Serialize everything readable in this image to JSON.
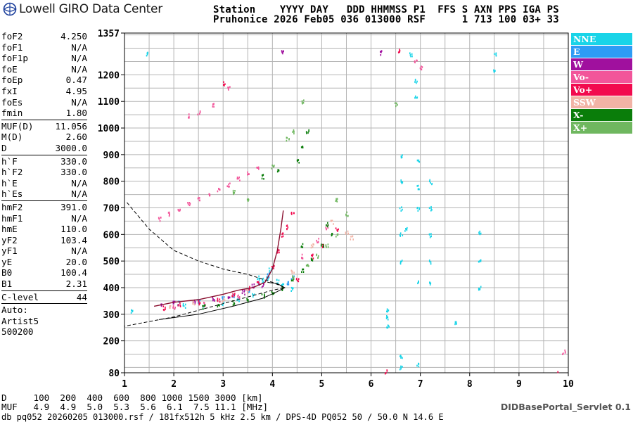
{
  "logo_text": "Lowell GIRO Data Center",
  "header": {
    "line1": "Station    YYYY DAY   DDD HHMMSS P1  FFS S AXN PPS IGA PS",
    "line2": "Pruhonice 2026 Feb05 036 013000 RSF      1 713 100 03+ 33"
  },
  "params": {
    "group1": [
      {
        "label": "foF2",
        "value": "4.250"
      },
      {
        "label": "foF1",
        "value": "N/A"
      },
      {
        "label": "foF1p",
        "value": "N/A"
      },
      {
        "label": "foE",
        "value": "N/A"
      },
      {
        "label": "foEp",
        "value": "0.47"
      },
      {
        "label": "fxI",
        "value": "4.95"
      },
      {
        "label": "foEs",
        "value": "N/A"
      },
      {
        "label": "fmin",
        "value": "1.80"
      }
    ],
    "group2": [
      {
        "label": "MUF(D)",
        "value": "11.056"
      },
      {
        "label": "M(D)",
        "value": "2.60"
      },
      {
        "label": "D",
        "value": "3000.0"
      }
    ],
    "group3": [
      {
        "label": "h`F",
        "value": "330.0"
      },
      {
        "label": "h`F2",
        "value": "330.0"
      },
      {
        "label": "h`E",
        "value": "N/A"
      },
      {
        "label": "h`Es",
        "value": "N/A"
      }
    ],
    "group4": [
      {
        "label": "hmF2",
        "value": "391.0"
      },
      {
        "label": "hmF1",
        "value": "N/A"
      },
      {
        "label": "hmE",
        "value": "110.0"
      },
      {
        "label": "yF2",
        "value": "103.4"
      },
      {
        "label": "yF1",
        "value": "N/A"
      },
      {
        "label": "yE",
        "value": "20.0"
      },
      {
        "label": "B0",
        "value": "100.4"
      },
      {
        "label": "B1",
        "value": "2.31"
      }
    ],
    "group5": [
      {
        "label": "C-level",
        "value": "44"
      }
    ],
    "auto_lines": [
      "Auto:",
      "Artist5",
      "500200"
    ]
  },
  "legend": [
    {
      "label": "NNE",
      "color": "#19d4e8"
    },
    {
      "label": "E",
      "color": "#2e9cf5"
    },
    {
      "label": "W",
      "color": "#a0109e"
    },
    {
      "label": "Vo-",
      "color": "#f2559a"
    },
    {
      "label": "Vo+",
      "color": "#f20a4e"
    },
    {
      "label": "SSW",
      "color": "#f2b3a6"
    },
    {
      "label": "X-",
      "color": "#0a7d0a"
    },
    {
      "label": "X+",
      "color": "#6fb75f"
    }
  ],
  "footer": {
    "d_line": "D     100  200  400  600  800 1000 1500 3000 [km]",
    "muf_line": "MUF   4.9  4.9  5.0  5.3  5.6  6.1  7.5 11.1 [MHz]",
    "info_line": "db pq052 20260205 013000.rsf / 181fx512h 5 kHz 2.5 km / DPS-4D PQ052 50 / 50.0 N 14.6 E",
    "servlet": "DIDBasePortal_Servlet 0.1"
  },
  "chart_data": {
    "type": "scatter",
    "title": "",
    "xlabel": "",
    "ylabel": "",
    "xlim": [
      1,
      10
    ],
    "ylim": [
      80,
      1357
    ],
    "x_ticks": [
      1,
      2,
      3,
      4,
      5,
      6,
      7,
      8,
      9,
      10
    ],
    "y_ticks": [
      80,
      200,
      300,
      400,
      500,
      600,
      700,
      800,
      900,
      1000,
      1100,
      1200,
      1357
    ],
    "grid": true,
    "series": [
      {
        "name": "NNE",
        "color": "#19d4e8",
        "points": [
          [
            1.15,
            315
          ],
          [
            1.45,
            1280
          ],
          [
            2.2,
            335
          ],
          [
            2.6,
            330
          ],
          [
            3.0,
            345
          ],
          [
            3.3,
            355
          ],
          [
            3.6,
            375
          ],
          [
            3.7,
            440
          ],
          [
            3.8,
            430
          ],
          [
            3.9,
            440
          ],
          [
            3.95,
            470
          ],
          [
            4.1,
            425
          ],
          [
            4.2,
            410
          ],
          [
            4.4,
            395
          ],
          [
            6.33,
            320
          ],
          [
            6.33,
            290
          ],
          [
            6.33,
            260
          ],
          [
            6.6,
            900
          ],
          [
            6.6,
            800
          ],
          [
            6.6,
            700
          ],
          [
            6.6,
            600
          ],
          [
            6.6,
            500
          ],
          [
            6.6,
            140
          ],
          [
            6.6,
            100
          ],
          [
            6.7,
            620
          ],
          [
            6.8,
            1280
          ],
          [
            6.9,
            1180
          ],
          [
            6.9,
            1120
          ],
          [
            6.95,
            880
          ],
          [
            6.95,
            780
          ],
          [
            6.95,
            700
          ],
          [
            6.95,
            420
          ],
          [
            6.95,
            110
          ],
          [
            7.2,
            800
          ],
          [
            7.2,
            700
          ],
          [
            7.2,
            600
          ],
          [
            7.2,
            500
          ],
          [
            7.2,
            420
          ],
          [
            7.7,
            270
          ],
          [
            8.2,
            610
          ],
          [
            8.2,
            500
          ],
          [
            8.2,
            400
          ],
          [
            8.5,
            1280
          ],
          [
            8.5,
            1220
          ]
        ]
      },
      {
        "name": "E",
        "color": "#2e9cf5",
        "points": [
          [
            2.1,
            345
          ],
          [
            2.5,
            350
          ],
          [
            3.0,
            360
          ],
          [
            3.2,
            370
          ],
          [
            3.5,
            390
          ],
          [
            3.7,
            420
          ],
          [
            3.9,
            450
          ],
          [
            4.3,
            420
          ],
          [
            4.4,
            440
          ]
        ]
      },
      {
        "name": "W",
        "color": "#a0109e",
        "points": [
          [
            1.75,
            335
          ],
          [
            2.0,
            345
          ],
          [
            2.4,
            350
          ],
          [
            2.8,
            360
          ],
          [
            3.1,
            370
          ],
          [
            3.4,
            385
          ],
          [
            3.6,
            410
          ],
          [
            3.8,
            410
          ],
          [
            4.2,
            1290
          ],
          [
            6.2,
            1285
          ]
        ]
      },
      {
        "name": "Vo-",
        "color": "#f2559a",
        "points": [
          [
            1.7,
            660
          ],
          [
            1.9,
            680
          ],
          [
            2.1,
            700
          ],
          [
            2.3,
            720
          ],
          [
            2.5,
            735
          ],
          [
            2.7,
            750
          ],
          [
            2.9,
            770
          ],
          [
            3.1,
            790
          ],
          [
            3.3,
            810
          ],
          [
            3.5,
            830
          ],
          [
            3.7,
            850
          ],
          [
            2.3,
            1050
          ],
          [
            2.5,
            1060
          ],
          [
            2.8,
            1090
          ],
          [
            3.1,
            1150
          ],
          [
            2.0,
            330
          ],
          [
            2.6,
            340
          ],
          [
            3.3,
            370
          ],
          [
            4.6,
            520
          ],
          [
            4.9,
            580
          ],
          [
            5.1,
            630
          ],
          [
            6.9,
            1250
          ],
          [
            7.0,
            1230
          ],
          [
            9.9,
            160
          ]
        ]
      },
      {
        "name": "Vo+",
        "color": "#f20a4e",
        "points": [
          [
            1.8,
            325
          ],
          [
            2.1,
            340
          ],
          [
            2.5,
            345
          ],
          [
            2.9,
            355
          ],
          [
            3.2,
            375
          ],
          [
            3.5,
            400
          ],
          [
            3.7,
            420
          ],
          [
            4.0,
            480
          ],
          [
            4.1,
            540
          ],
          [
            4.2,
            600
          ],
          [
            4.4,
            680
          ],
          [
            4.3,
            630
          ],
          [
            5.0,
            560
          ],
          [
            5.3,
            620
          ],
          [
            4.5,
            430
          ],
          [
            4.8,
            520
          ],
          [
            3.0,
            1170
          ],
          [
            6.55,
            1290
          ],
          [
            6.3,
            85
          ],
          [
            9.8,
            82
          ]
        ]
      },
      {
        "name": "SSW",
        "color": "#f2b3a6",
        "points": [
          [
            1.9,
            335
          ],
          [
            2.4,
            345
          ],
          [
            3.0,
            355
          ],
          [
            3.5,
            390
          ],
          [
            4.4,
            460
          ],
          [
            4.8,
            560
          ],
          [
            5.2,
            650
          ],
          [
            5.5,
            610
          ],
          [
            5.6,
            590
          ]
        ]
      },
      {
        "name": "X-",
        "color": "#0a7d0a",
        "points": [
          [
            2.6,
            330
          ],
          [
            2.9,
            335
          ],
          [
            3.2,
            345
          ],
          [
            3.5,
            355
          ],
          [
            3.8,
            370
          ],
          [
            4.0,
            380
          ],
          [
            4.2,
            400
          ],
          [
            4.4,
            430
          ],
          [
            4.6,
            470
          ],
          [
            4.8,
            510
          ],
          [
            5.0,
            560
          ],
          [
            5.2,
            600
          ],
          [
            4.5,
            880
          ],
          [
            4.6,
            930
          ],
          [
            4.7,
            990
          ],
          [
            4.1,
            840
          ],
          [
            3.8,
            820
          ],
          [
            4.6,
            560
          ],
          [
            5.1,
            640
          ]
        ]
      },
      {
        "name": "X+",
        "color": "#6fb75f",
        "points": [
          [
            3.2,
            760
          ],
          [
            3.5,
            730
          ],
          [
            4.0,
            855
          ],
          [
            4.3,
            960
          ],
          [
            4.4,
            990
          ],
          [
            4.4,
            440
          ],
          [
            4.7,
            490
          ],
          [
            4.9,
            520
          ],
          [
            5.1,
            560
          ],
          [
            5.3,
            600
          ],
          [
            5.5,
            680
          ],
          [
            5.3,
            730
          ],
          [
            4.6,
            1100
          ],
          [
            6.5,
            1090
          ]
        ]
      }
    ],
    "trace_solid": {
      "x": [
        1.7,
        2.5,
        3.2,
        3.8,
        4.1,
        4.25,
        4.1,
        3.9
      ],
      "y": [
        280,
        300,
        330,
        360,
        385,
        400,
        415,
        420
      ]
    },
    "trace_dashed": {
      "x": [
        1.05,
        1.5,
        2.0,
        2.5,
        3.0,
        3.5,
        4.0,
        4.25,
        4.0,
        3.0,
        2.0,
        1.0
      ],
      "y": [
        720,
        620,
        540,
        500,
        470,
        450,
        420,
        400,
        390,
        340,
        290,
        255
      ]
    },
    "trace_profile": {
      "x": [
        1.6,
        2.0,
        2.5,
        3.0,
        3.3,
        3.6,
        3.85,
        4.0,
        4.1,
        4.17,
        4.22
      ],
      "y": [
        330,
        345,
        355,
        375,
        390,
        400,
        420,
        470,
        540,
        620,
        690
      ]
    }
  }
}
